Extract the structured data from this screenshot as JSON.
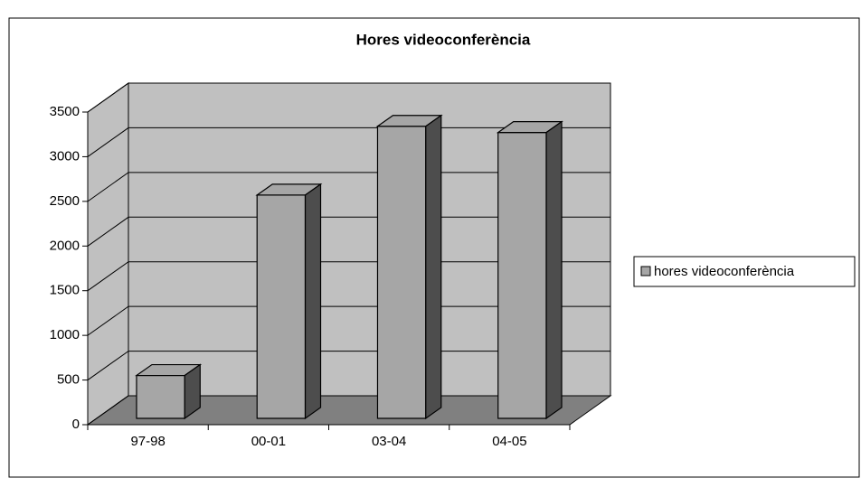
{
  "chart_data": {
    "type": "bar",
    "title": "Hores videoconferència",
    "categories": [
      "97-98",
      "00-01",
      "03-04",
      "04-05"
    ],
    "series": [
      {
        "name": "hores videoconferència",
        "color": "#a6a6a6",
        "values": [
          480,
          2500,
          3270,
          3200
        ]
      }
    ],
    "ylim": [
      0,
      3500
    ],
    "yticks": [
      0,
      500,
      1000,
      1500,
      2000,
      2500,
      3000,
      3500
    ],
    "grid": true,
    "legend": "right"
  }
}
